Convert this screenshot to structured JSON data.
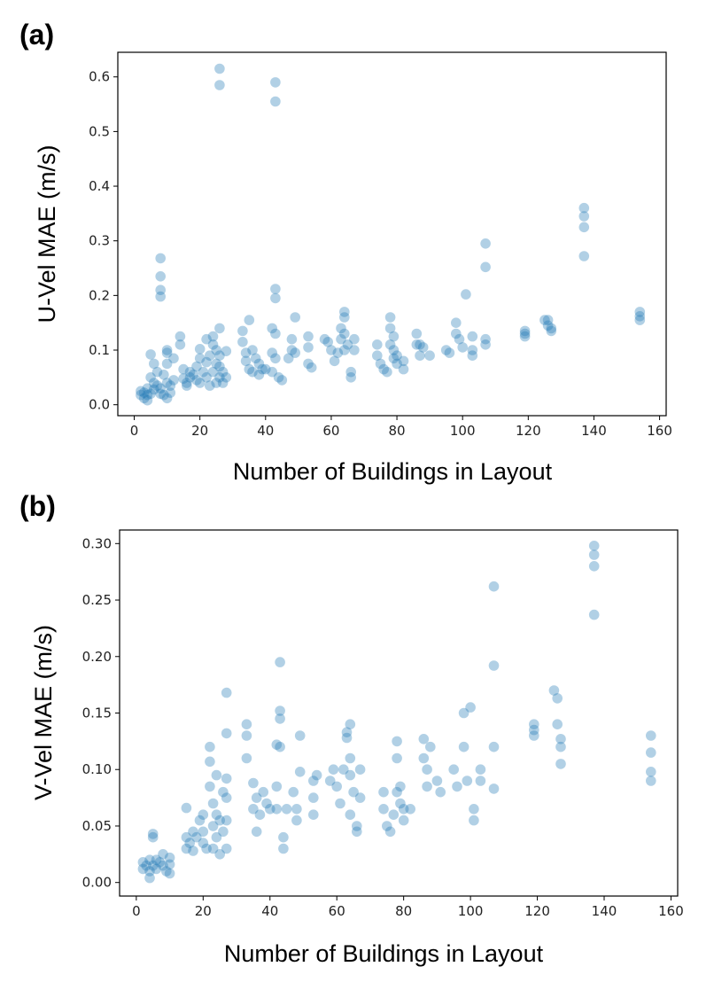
{
  "chart_data": [
    {
      "type": "scatter",
      "panel": "(a)",
      "xlabel": "Number of Buildings in Layout",
      "ylabel": "U-Vel MAE (m/s)",
      "xlim": [
        -5,
        162
      ],
      "ylim": [
        -0.02,
        0.645
      ],
      "xticks": [
        "0",
        "20",
        "40",
        "60",
        "80",
        "100",
        "120",
        "140",
        "160"
      ],
      "yticks": [
        "0.0",
        "0.1",
        "0.2",
        "0.3",
        "0.4",
        "0.5",
        "0.6"
      ],
      "grid": false,
      "color": "#1f77b4",
      "points": [
        [
          2,
          0.025
        ],
        [
          2,
          0.018
        ],
        [
          3,
          0.022
        ],
        [
          3,
          0.012
        ],
        [
          4,
          0.03
        ],
        [
          4,
          0.008
        ],
        [
          4,
          0.018
        ],
        [
          5,
          0.092
        ],
        [
          5,
          0.05
        ],
        [
          5,
          0.02
        ],
        [
          6,
          0.075
        ],
        [
          6,
          0.04
        ],
        [
          6,
          0.028
        ],
        [
          7,
          0.06
        ],
        [
          7,
          0.035
        ],
        [
          8,
          0.268
        ],
        [
          8,
          0.235
        ],
        [
          8,
          0.21
        ],
        [
          8,
          0.198
        ],
        [
          8,
          0.03
        ],
        [
          8,
          0.02
        ],
        [
          9,
          0.055
        ],
        [
          9,
          0.018
        ],
        [
          10,
          0.1
        ],
        [
          10,
          0.095
        ],
        [
          10,
          0.075
        ],
        [
          10,
          0.04
        ],
        [
          10,
          0.012
        ],
        [
          11,
          0.035
        ],
        [
          11,
          0.022
        ],
        [
          12,
          0.085
        ],
        [
          12,
          0.045
        ],
        [
          14,
          0.125
        ],
        [
          14,
          0.11
        ],
        [
          15,
          0.065
        ],
        [
          15,
          0.048
        ],
        [
          16,
          0.04
        ],
        [
          16,
          0.035
        ],
        [
          17,
          0.06
        ],
        [
          17,
          0.05
        ],
        [
          18,
          0.055
        ],
        [
          19,
          0.07
        ],
        [
          19,
          0.045
        ],
        [
          20,
          0.102
        ],
        [
          20,
          0.085
        ],
        [
          20,
          0.04
        ],
        [
          21,
          0.06
        ],
        [
          22,
          0.12
        ],
        [
          22,
          0.078
        ],
        [
          22,
          0.05
        ],
        [
          23,
          0.09
        ],
        [
          23,
          0.035
        ],
        [
          24,
          0.125
        ],
        [
          24,
          0.11
        ],
        [
          24,
          0.06
        ],
        [
          25,
          0.1
        ],
        [
          25,
          0.075
        ],
        [
          25,
          0.04
        ],
        [
          26,
          0.615
        ],
        [
          26,
          0.585
        ],
        [
          26,
          0.14
        ],
        [
          26,
          0.09
        ],
        [
          26,
          0.07
        ],
        [
          26,
          0.05
        ],
        [
          27,
          0.06
        ],
        [
          27,
          0.04
        ],
        [
          28,
          0.098
        ],
        [
          28,
          0.05
        ],
        [
          33,
          0.135
        ],
        [
          33,
          0.115
        ],
        [
          34,
          0.095
        ],
        [
          34,
          0.08
        ],
        [
          35,
          0.155
        ],
        [
          35,
          0.065
        ],
        [
          36,
          0.1
        ],
        [
          36,
          0.06
        ],
        [
          37,
          0.085
        ],
        [
          38,
          0.075
        ],
        [
          38,
          0.055
        ],
        [
          39,
          0.065
        ],
        [
          40,
          0.065
        ],
        [
          42,
          0.14
        ],
        [
          42,
          0.095
        ],
        [
          42,
          0.06
        ],
        [
          43,
          0.59
        ],
        [
          43,
          0.555
        ],
        [
          43,
          0.212
        ],
        [
          43,
          0.195
        ],
        [
          43,
          0.13
        ],
        [
          43,
          0.085
        ],
        [
          44,
          0.05
        ],
        [
          45,
          0.045
        ],
        [
          47,
          0.085
        ],
        [
          48,
          0.12
        ],
        [
          48,
          0.1
        ],
        [
          49,
          0.16
        ],
        [
          49,
          0.095
        ],
        [
          53,
          0.125
        ],
        [
          53,
          0.105
        ],
        [
          53,
          0.075
        ],
        [
          54,
          0.068
        ],
        [
          58,
          0.12
        ],
        [
          59,
          0.115
        ],
        [
          60,
          0.1
        ],
        [
          61,
          0.08
        ],
        [
          62,
          0.095
        ],
        [
          63,
          0.14
        ],
        [
          63,
          0.12
        ],
        [
          64,
          0.17
        ],
        [
          64,
          0.16
        ],
        [
          64,
          0.13
        ],
        [
          64,
          0.1
        ],
        [
          65,
          0.11
        ],
        [
          66,
          0.06
        ],
        [
          66,
          0.05
        ],
        [
          67,
          0.12
        ],
        [
          67,
          0.1
        ],
        [
          74,
          0.11
        ],
        [
          74,
          0.09
        ],
        [
          75,
          0.075
        ],
        [
          76,
          0.065
        ],
        [
          77,
          0.06
        ],
        [
          78,
          0.16
        ],
        [
          78,
          0.14
        ],
        [
          78,
          0.11
        ],
        [
          79,
          0.125
        ],
        [
          79,
          0.1
        ],
        [
          79,
          0.085
        ],
        [
          80,
          0.09
        ],
        [
          80,
          0.075
        ],
        [
          82,
          0.08
        ],
        [
          82,
          0.065
        ],
        [
          86,
          0.13
        ],
        [
          86,
          0.11
        ],
        [
          87,
          0.11
        ],
        [
          87,
          0.09
        ],
        [
          88,
          0.105
        ],
        [
          90,
          0.09
        ],
        [
          95,
          0.1
        ],
        [
          96,
          0.095
        ],
        [
          98,
          0.15
        ],
        [
          98,
          0.13
        ],
        [
          99,
          0.12
        ],
        [
          100,
          0.105
        ],
        [
          101,
          0.202
        ],
        [
          103,
          0.125
        ],
        [
          103,
          0.1
        ],
        [
          103,
          0.09
        ],
        [
          107,
          0.295
        ],
        [
          107,
          0.252
        ],
        [
          107,
          0.12
        ],
        [
          107,
          0.11
        ],
        [
          119,
          0.135
        ],
        [
          119,
          0.13
        ],
        [
          119,
          0.125
        ],
        [
          125,
          0.155
        ],
        [
          126,
          0.155
        ],
        [
          126,
          0.145
        ],
        [
          127,
          0.14
        ],
        [
          127,
          0.135
        ],
        [
          137,
          0.36
        ],
        [
          137,
          0.345
        ],
        [
          137,
          0.325
        ],
        [
          137,
          0.272
        ],
        [
          154,
          0.17
        ],
        [
          154,
          0.162
        ],
        [
          154,
          0.155
        ]
      ]
    },
    {
      "type": "scatter",
      "panel": "(b)",
      "xlabel": "Number of Buildings in Layout",
      "ylabel": "V-Vel MAE (m/s)",
      "xlim": [
        -5,
        162
      ],
      "ylim": [
        -0.012,
        0.312
      ],
      "xticks": [
        "0",
        "20",
        "40",
        "60",
        "80",
        "100",
        "120",
        "140",
        "160"
      ],
      "yticks": [
        "0.00",
        "0.05",
        "0.10",
        "0.15",
        "0.20",
        "0.25",
        "0.30"
      ],
      "grid": false,
      "color": "#1f77b4",
      "points": [
        [
          2,
          0.018
        ],
        [
          2,
          0.012
        ],
        [
          3,
          0.015
        ],
        [
          4,
          0.02
        ],
        [
          4,
          0.01
        ],
        [
          4,
          0.004
        ],
        [
          5,
          0.043
        ],
        [
          5,
          0.04
        ],
        [
          5,
          0.015
        ],
        [
          6,
          0.02
        ],
        [
          6,
          0.012
        ],
        [
          7,
          0.018
        ],
        [
          8,
          0.025
        ],
        [
          8,
          0.015
        ],
        [
          9,
          0.01
        ],
        [
          10,
          0.022
        ],
        [
          10,
          0.016
        ],
        [
          10,
          0.008
        ],
        [
          15,
          0.066
        ],
        [
          15,
          0.04
        ],
        [
          15,
          0.03
        ],
        [
          16,
          0.035
        ],
        [
          17,
          0.045
        ],
        [
          17,
          0.028
        ],
        [
          18,
          0.04
        ],
        [
          19,
          0.055
        ],
        [
          20,
          0.06
        ],
        [
          20,
          0.045
        ],
        [
          20,
          0.035
        ],
        [
          21,
          0.03
        ],
        [
          22,
          0.12
        ],
        [
          22,
          0.107
        ],
        [
          22,
          0.085
        ],
        [
          23,
          0.07
        ],
        [
          23,
          0.05
        ],
        [
          23,
          0.03
        ],
        [
          24,
          0.095
        ],
        [
          24,
          0.06
        ],
        [
          24,
          0.04
        ],
        [
          25,
          0.055
        ],
        [
          25,
          0.025
        ],
        [
          26,
          0.08
        ],
        [
          26,
          0.045
        ],
        [
          27,
          0.168
        ],
        [
          27,
          0.132
        ],
        [
          27,
          0.092
        ],
        [
          27,
          0.075
        ],
        [
          27,
          0.055
        ],
        [
          27,
          0.03
        ],
        [
          33,
          0.14
        ],
        [
          33,
          0.13
        ],
        [
          33,
          0.11
        ],
        [
          35,
          0.088
        ],
        [
          35,
          0.065
        ],
        [
          36,
          0.075
        ],
        [
          36,
          0.045
        ],
        [
          37,
          0.06
        ],
        [
          38,
          0.08
        ],
        [
          39,
          0.07
        ],
        [
          40,
          0.065
        ],
        [
          42,
          0.122
        ],
        [
          42,
          0.085
        ],
        [
          42,
          0.065
        ],
        [
          43,
          0.195
        ],
        [
          43,
          0.152
        ],
        [
          43,
          0.145
        ],
        [
          43,
          0.12
        ],
        [
          44,
          0.04
        ],
        [
          44,
          0.03
        ],
        [
          45,
          0.065
        ],
        [
          47,
          0.08
        ],
        [
          48,
          0.065
        ],
        [
          48,
          0.055
        ],
        [
          49,
          0.13
        ],
        [
          49,
          0.098
        ],
        [
          53,
          0.09
        ],
        [
          53,
          0.075
        ],
        [
          53,
          0.06
        ],
        [
          54,
          0.095
        ],
        [
          58,
          0.09
        ],
        [
          59,
          0.1
        ],
        [
          60,
          0.085
        ],
        [
          61,
          0.07
        ],
        [
          62,
          0.1
        ],
        [
          63,
          0.133
        ],
        [
          63,
          0.128
        ],
        [
          64,
          0.14
        ],
        [
          64,
          0.11
        ],
        [
          64,
          0.095
        ],
        [
          64,
          0.06
        ],
        [
          65,
          0.08
        ],
        [
          66,
          0.05
        ],
        [
          66,
          0.045
        ],
        [
          67,
          0.1
        ],
        [
          67,
          0.075
        ],
        [
          74,
          0.08
        ],
        [
          74,
          0.065
        ],
        [
          75,
          0.05
        ],
        [
          76,
          0.045
        ],
        [
          77,
          0.06
        ],
        [
          78,
          0.125
        ],
        [
          78,
          0.11
        ],
        [
          78,
          0.08
        ],
        [
          79,
          0.085
        ],
        [
          79,
          0.07
        ],
        [
          80,
          0.065
        ],
        [
          80,
          0.055
        ],
        [
          82,
          0.065
        ],
        [
          86,
          0.127
        ],
        [
          86,
          0.11
        ],
        [
          87,
          0.1
        ],
        [
          87,
          0.085
        ],
        [
          88,
          0.12
        ],
        [
          90,
          0.09
        ],
        [
          91,
          0.08
        ],
        [
          95,
          0.1
        ],
        [
          96,
          0.085
        ],
        [
          98,
          0.15
        ],
        [
          98,
          0.12
        ],
        [
          99,
          0.09
        ],
        [
          100,
          0.155
        ],
        [
          101,
          0.065
        ],
        [
          101,
          0.055
        ],
        [
          103,
          0.1
        ],
        [
          103,
          0.09
        ],
        [
          107,
          0.262
        ],
        [
          107,
          0.192
        ],
        [
          107,
          0.12
        ],
        [
          107,
          0.083
        ],
        [
          119,
          0.14
        ],
        [
          119,
          0.135
        ],
        [
          119,
          0.13
        ],
        [
          125,
          0.17
        ],
        [
          126,
          0.163
        ],
        [
          126,
          0.14
        ],
        [
          127,
          0.127
        ],
        [
          127,
          0.12
        ],
        [
          127,
          0.105
        ],
        [
          137,
          0.298
        ],
        [
          137,
          0.29
        ],
        [
          137,
          0.28
        ],
        [
          137,
          0.237
        ],
        [
          154,
          0.13
        ],
        [
          154,
          0.115
        ],
        [
          154,
          0.098
        ],
        [
          154,
          0.09
        ]
      ]
    }
  ]
}
